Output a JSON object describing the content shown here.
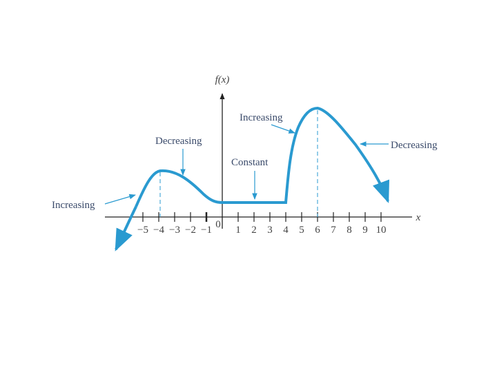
{
  "axes": {
    "y_label": "f(x)",
    "x_label": "x"
  },
  "x_tick_labels": [
    "−5",
    "−4",
    "−3",
    "−2",
    "−1",
    "0",
    "1",
    "2",
    "3",
    "4",
    "5",
    "6",
    "7",
    "8",
    "9",
    "10"
  ],
  "annotations": [
    {
      "label": "Increasing"
    },
    {
      "label": "Decreasing"
    },
    {
      "label": "Constant"
    },
    {
      "label": "Increasing"
    },
    {
      "label": "Decreasing"
    }
  ]
}
